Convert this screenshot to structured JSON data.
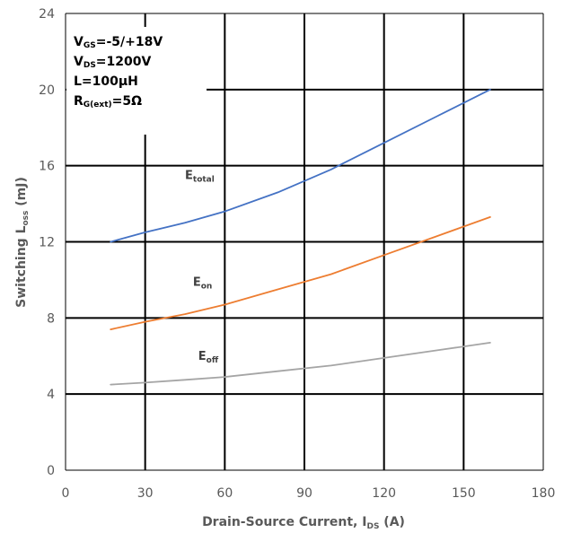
{
  "chart_data": {
    "type": "line",
    "xlabel": {
      "main": "Drain-Source Current, I",
      "sub": "DS",
      "unit": " (A)"
    },
    "ylabel": {
      "main": "Switching L",
      "sub": "oss",
      "unit": " (mJ)"
    },
    "xlim": [
      0,
      180
    ],
    "ylim": [
      0,
      24
    ],
    "x_ticks": [
      "0",
      "30",
      "60",
      "90",
      "120",
      "150",
      "180"
    ],
    "y_ticks": [
      "0",
      "4",
      "8",
      "12",
      "16",
      "20",
      "24"
    ],
    "grid": true,
    "conditions": [
      {
        "main": "V",
        "sub": "GS",
        "rest": "=-5/+18V"
      },
      {
        "main": "V",
        "sub": "DS",
        "rest": "=1200V"
      },
      {
        "main": "L=100µH",
        "sub": "",
        "rest": ""
      },
      {
        "main": "R",
        "sub": "G(ext)",
        "rest": "=5Ω"
      }
    ],
    "series": [
      {
        "name": "total",
        "label_main": "E",
        "label_sub": "total",
        "label_at": [
          45,
          15.3
        ],
        "color": "#4472C4",
        "x": [
          17,
          30,
          45,
          60,
          80,
          100,
          120,
          140,
          160
        ],
        "y": [
          12.0,
          12.5,
          13.0,
          13.6,
          14.6,
          15.8,
          17.2,
          18.6,
          20.0
        ]
      },
      {
        "name": "on",
        "label_main": "E",
        "label_sub": "on",
        "label_at": [
          48,
          9.7
        ],
        "color": "#ED7D31",
        "x": [
          17,
          30,
          45,
          60,
          80,
          100,
          120,
          140,
          160
        ],
        "y": [
          7.4,
          7.8,
          8.2,
          8.7,
          9.5,
          10.3,
          11.3,
          12.3,
          13.3
        ]
      },
      {
        "name": "off",
        "label_main": "E",
        "label_sub": "off",
        "label_at": [
          50,
          5.8
        ],
        "color": "#A5A5A5",
        "x": [
          17,
          30,
          45,
          60,
          80,
          100,
          120,
          140,
          160
        ],
        "y": [
          4.5,
          4.6,
          4.75,
          4.9,
          5.2,
          5.5,
          5.9,
          6.3,
          6.7
        ]
      }
    ]
  }
}
